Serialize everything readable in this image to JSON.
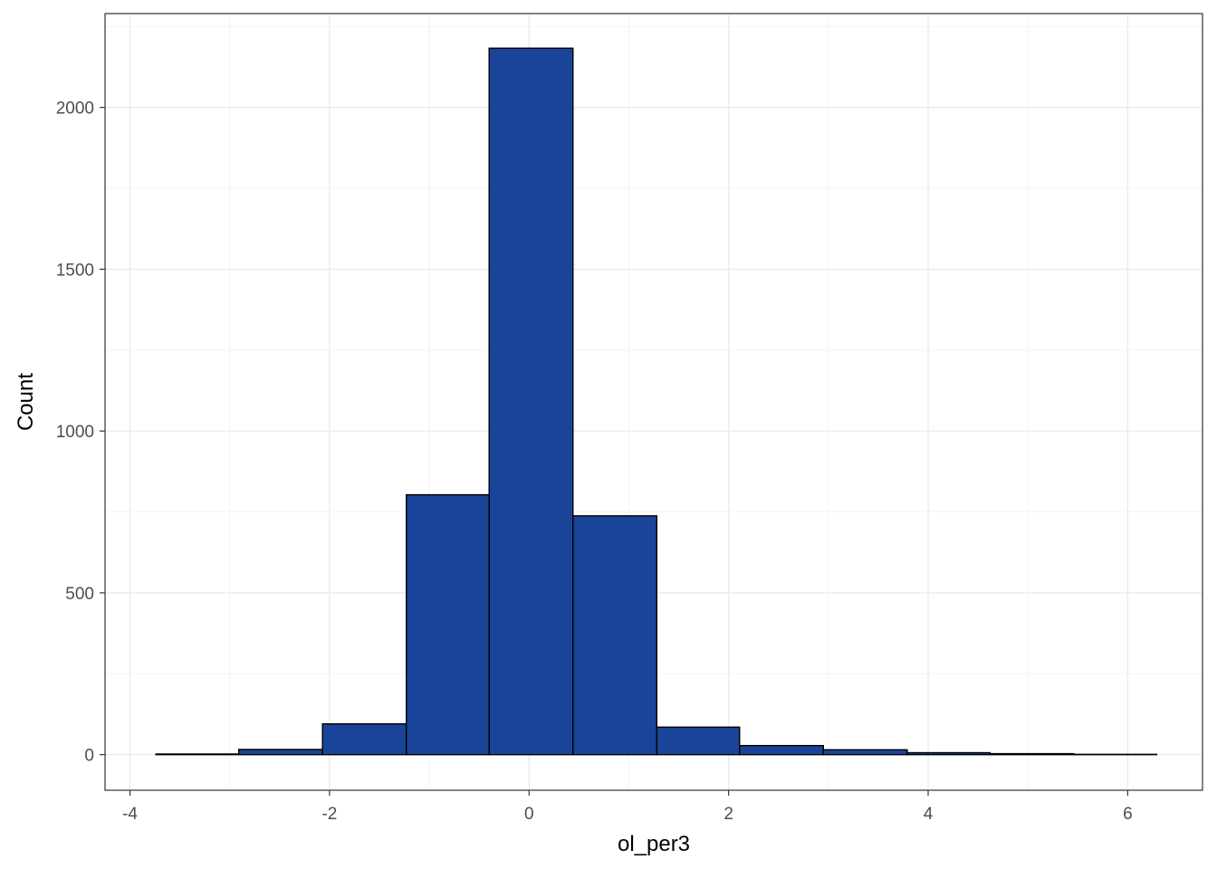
{
  "chart_data": {
    "type": "bar",
    "subtype": "histogram",
    "title": "",
    "xlabel": "ol_per3",
    "ylabel": "Count",
    "xlim": [
      -4.25,
      6.75
    ],
    "ylim": [
      -110,
      2290
    ],
    "x_ticks": [
      -4,
      -2,
      0,
      2,
      4,
      6
    ],
    "x_tick_labels": [
      "-4",
      "-2",
      "0",
      "2",
      "4",
      "6"
    ],
    "y_ticks": [
      0,
      500,
      1000,
      1500,
      2000
    ],
    "y_tick_labels": [
      "0",
      "500",
      "1000",
      "1500",
      "2000"
    ],
    "bin_width": 0.836,
    "bins": [
      {
        "x0": -3.74,
        "x1": -2.91,
        "count": 2
      },
      {
        "x0": -2.91,
        "x1": -2.07,
        "count": 16
      },
      {
        "x0": -2.07,
        "x1": -1.23,
        "count": 95
      },
      {
        "x0": -1.23,
        "x1": -0.4,
        "count": 803
      },
      {
        "x0": -0.4,
        "x1": 0.44,
        "count": 2183
      },
      {
        "x0": 0.44,
        "x1": 1.28,
        "count": 738
      },
      {
        "x0": 1.28,
        "x1": 2.11,
        "count": 85
      },
      {
        "x0": 2.11,
        "x1": 2.95,
        "count": 28
      },
      {
        "x0": 2.95,
        "x1": 3.79,
        "count": 15
      },
      {
        "x0": 3.79,
        "x1": 4.62,
        "count": 6
      },
      {
        "x0": 4.62,
        "x1": 5.46,
        "count": 3
      },
      {
        "x0": 5.46,
        "x1": 6.29,
        "count": 1
      }
    ],
    "colors": {
      "fill": "#1a4499",
      "outline": "#000000",
      "panel_border": "#333333",
      "grid": "#ebebeb"
    },
    "grid": true,
    "legend": "none"
  }
}
